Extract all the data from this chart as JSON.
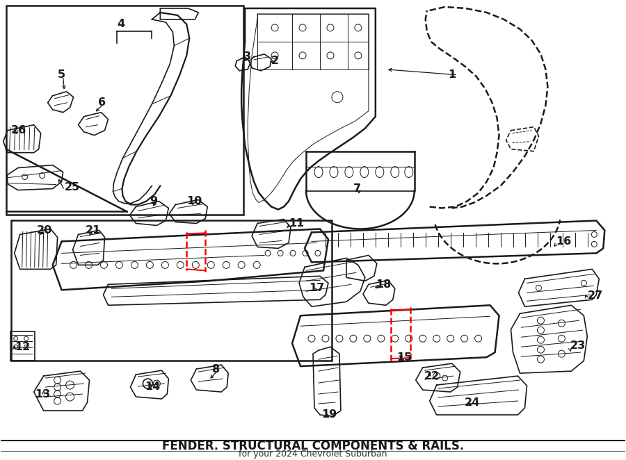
{
  "title": "FENDER. STRUCTURAL COMPONENTS & RAILS.",
  "subtitle": "for your 2024 Chevrolet Suburban",
  "bg_color": "#ffffff",
  "line_color": "#1a1a1a",
  "red_color": "#ff0000",
  "lw_heavy": 1.8,
  "lw_med": 1.2,
  "lw_light": 0.7,
  "fs_label": 11.5
}
